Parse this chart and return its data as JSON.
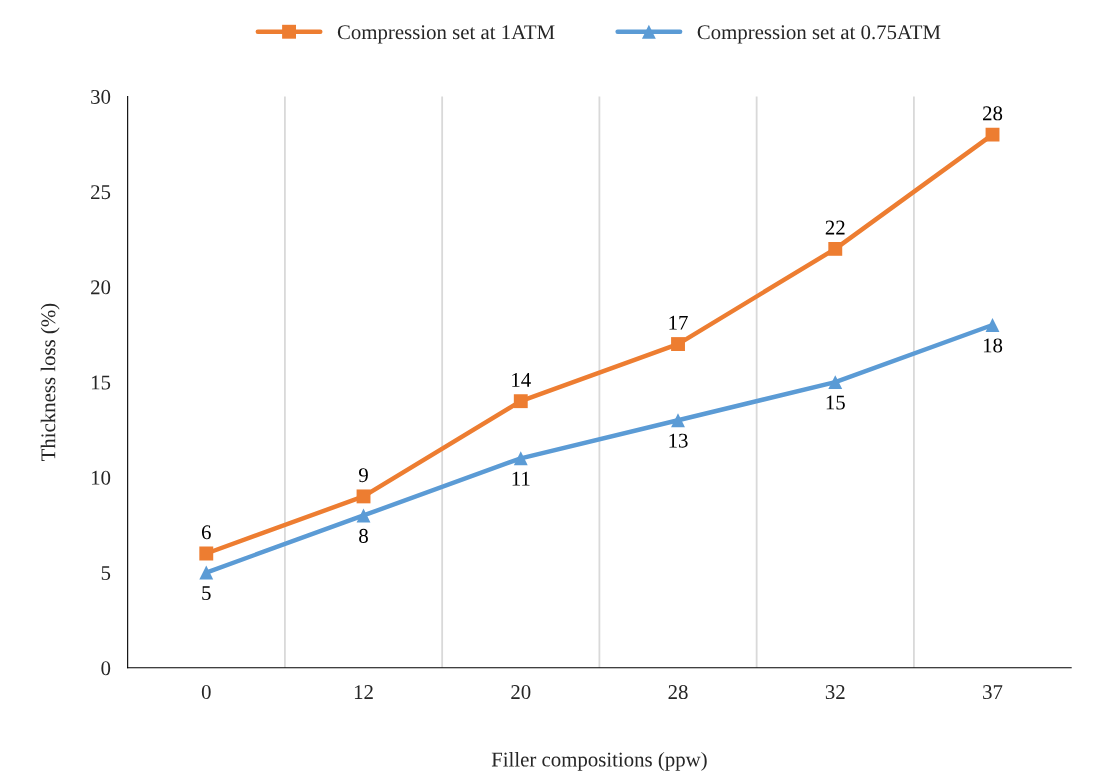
{
  "chart_data": {
    "type": "line",
    "xlabel": "Filler compositions (ppw)",
    "ylabel": "Thickness loss (%)",
    "categories": [
      "0",
      "12",
      "20",
      "28",
      "32",
      "37"
    ],
    "series": [
      {
        "name": "Compression set at 1ATM",
        "color": "#ed7d31",
        "marker": "square",
        "values": [
          6,
          9,
          14,
          17,
          22,
          28
        ]
      },
      {
        "name": "Compression set at 0.75ATM",
        "color": "#5b9bd5",
        "marker": "triangle",
        "values": [
          5,
          8,
          11,
          13,
          15,
          18
        ]
      }
    ],
    "ylim": [
      0,
      30
    ],
    "yticks": [
      0,
      5,
      10,
      15,
      20,
      25,
      30
    ],
    "grid": "x",
    "legend": "top",
    "data_labels": true,
    "line_style": "solid"
  }
}
